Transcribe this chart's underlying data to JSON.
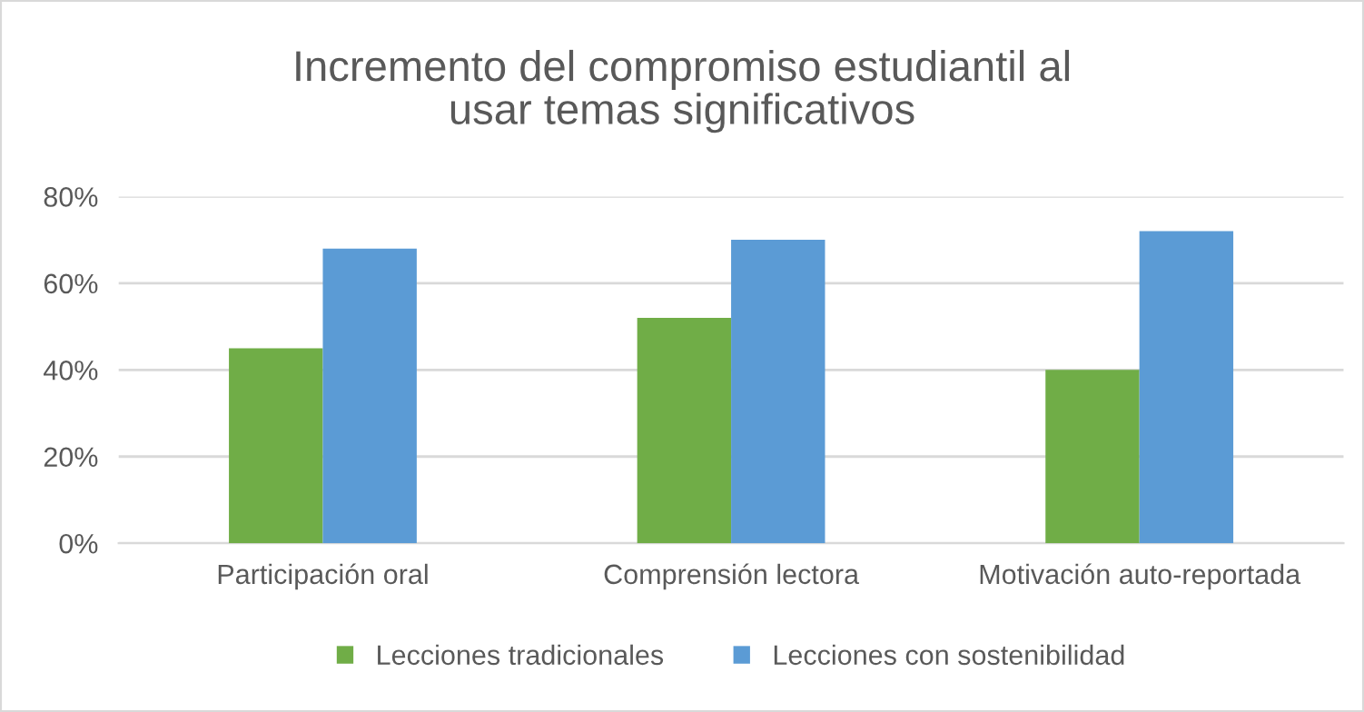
{
  "chart_data": {
    "type": "bar",
    "title": "Incremento del compromiso estudiantil al\nusar temas significativos",
    "categories": [
      "Participación oral",
      "Comprensión lectora",
      "Motivación auto-reportada"
    ],
    "series": [
      {
        "name": "Lecciones tradicionales",
        "color": "#70ad47",
        "values": [
          45,
          52,
          40
        ]
      },
      {
        "name": "Lecciones con sostenibilidad",
        "color": "#5b9bd5",
        "values": [
          68,
          70,
          72
        ]
      }
    ],
    "ylim": [
      0,
      80
    ],
    "yticks": [
      {
        "value": 0,
        "label": "0%"
      },
      {
        "value": 20,
        "label": "20%"
      },
      {
        "value": 40,
        "label": "40%"
      },
      {
        "value": 60,
        "label": "60%"
      },
      {
        "value": 80,
        "label": "80%"
      }
    ],
    "grid": "y",
    "legend": "bottom"
  }
}
